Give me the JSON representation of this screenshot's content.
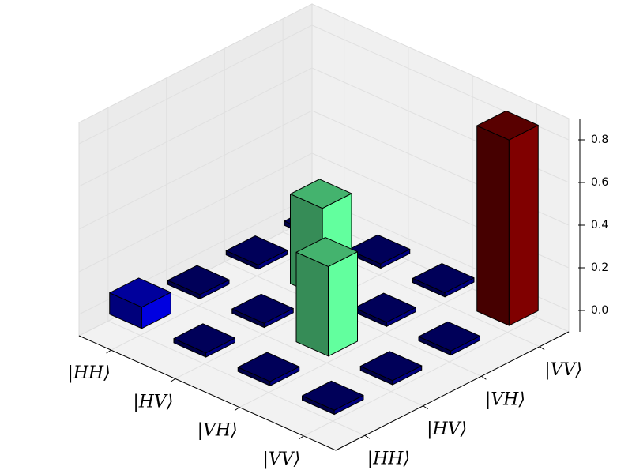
{
  "chart_data": {
    "type": "bar3d",
    "x_categories": [
      "|HH⟩",
      "|HV⟩",
      "|VH⟩",
      "|VV⟩"
    ],
    "y_categories": [
      "|HH⟩",
      "|HV⟩",
      "|VH⟩",
      "|VV⟩"
    ],
    "values": [
      [
        0.1,
        0.02,
        0.02,
        0.02
      ],
      [
        0.02,
        0.02,
        0.42,
        0.02
      ],
      [
        0.02,
        0.42,
        0.02,
        0.02
      ],
      [
        0.02,
        0.02,
        0.02,
        0.87
      ]
    ],
    "zlim": [
      -0.1,
      0.9
    ],
    "zticks": [
      {
        "value": 0,
        "label": "0.0"
      },
      {
        "value": 0.2,
        "label": "0.2"
      },
      {
        "value": 0.4,
        "label": "0.4"
      },
      {
        "value": 0.6,
        "label": "0.6"
      },
      {
        "value": 0.8,
        "label": "0.8"
      }
    ],
    "colormap": "jet",
    "grid": true
  }
}
